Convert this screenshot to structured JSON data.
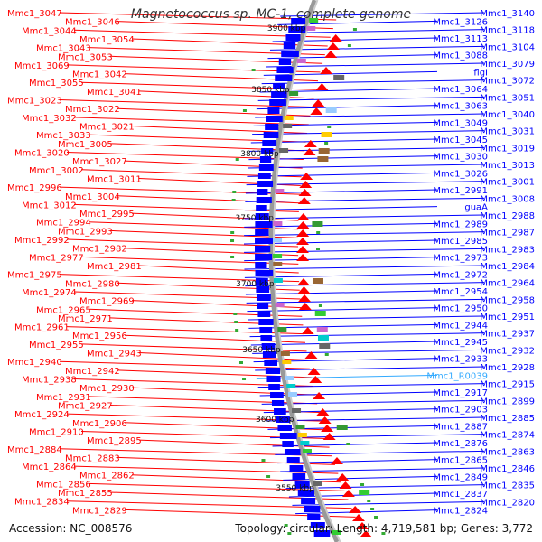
{
  "title": "Magnetococcus sp. MC-1, complete genome",
  "accession_label": "Accession: NC_008576",
  "footer_stats": "Topology: circular; Length: 4,719,581 bp; Genes: 3,772",
  "colors": {
    "reverse_strand": "#ff0000",
    "forward_strand": "#0000ff",
    "rna_label": "#33aaff",
    "backbone": "#999999"
  },
  "kbp_ticks": [
    "3900 kbp",
    "3850 kbp",
    "3800 kbp",
    "3750 kbp",
    "3700 kbp",
    "3650 kbp",
    "3600 kbp",
    "3550 kbp"
  ],
  "left_labels": [
    "Mmc1_3047",
    "Mmc1_3046",
    "Mmc1_3044",
    "Mmc1_3054",
    "Mmc1_3043",
    "Mmc1_3053",
    "Mmc1_3069",
    "Mmc1_3042",
    "Mmc1_3055",
    "Mmc1_3041",
    "Mmc1_3023",
    "Mmc1_3022",
    "Mmc1_3032",
    "Mmc1_3021",
    "Mmc1_3033",
    "Mmc1_3005",
    "Mmc1_3020",
    "Mmc1_3027",
    "Mmc1_3002",
    "Mmc1_3011",
    "Mmc1_2996",
    "Mmc1_3004",
    "Mmc1_3012",
    "Mmc1_2995",
    "Mmc1_2994",
    "Mmc1_2993",
    "Mmc1_2992",
    "Mmc1_2982",
    "Mmc1_2977",
    "Mmc1_2981",
    "Mmc1_2975",
    "Mmc1_2980",
    "Mmc1_2974",
    "Mmc1_2969",
    "Mmc1_2965",
    "Mmc1_2971",
    "Mmc1_2961",
    "Mmc1_2956",
    "Mmc1_2955",
    "Mmc1_2943",
    "Mmc1_2940",
    "Mmc1_2942",
    "Mmc1_2938",
    "Mmc1_2930",
    "Mmc1_2931",
    "Mmc1_2927",
    "Mmc1_2924",
    "Mmc1_2906",
    "Mmc1_2910",
    "Mmc1_2895",
    "Mmc1_2884",
    "Mmc1_2883",
    "Mmc1_2864",
    "Mmc1_2862",
    "Mmc1_2856",
    "Mmc1_2855",
    "Mmc1_2834",
    "Mmc1_2829"
  ],
  "right_labels": [
    "Mmc1_3140",
    "Mmc1_3126",
    "Mmc1_3118",
    "Mmc1_3113",
    "Mmc1_3104",
    "Mmc1_3088",
    "Mmc1_3079",
    "flgI",
    "Mmc1_3072",
    "Mmc1_3064",
    "Mmc1_3051",
    "Mmc1_3063",
    "Mmc1_3040",
    "Mmc1_3049",
    "Mmc1_3031",
    "Mmc1_3045",
    "Mmc1_3019",
    "Mmc1_3030",
    "Mmc1_3013",
    "Mmc1_3026",
    "Mmc1_3001",
    "Mmc1_2991",
    "Mmc1_3008",
    "guaA",
    "Mmc1_2988",
    "Mmc1_2989",
    "Mmc1_2987",
    "Mmc1_2985",
    "Mmc1_2983",
    "Mmc1_2973",
    "Mmc1_2984",
    "Mmc1_2972",
    "Mmc1_2964",
    "Mmc1_2954",
    "Mmc1_2958",
    "Mmc1_2950",
    "Mmc1_2951",
    "Mmc1_2944",
    "Mmc1_2937",
    "Mmc1_2945",
    "Mmc1_2932",
    "Mmc1_2933",
    "Mmc1_2928",
    "Mmc1_R0039",
    "Mmc1_2915",
    "Mmc1_2917",
    "Mmc1_2899",
    "Mmc1_2903",
    "Mmc1_2885",
    "Mmc1_2887",
    "Mmc1_2874",
    "Mmc1_2876",
    "Mmc1_2863",
    "Mmc1_2865",
    "Mmc1_2846",
    "Mmc1_2849",
    "Mmc1_2835",
    "Mmc1_2837",
    "Mmc1_2820",
    "Mmc1_2824"
  ]
}
